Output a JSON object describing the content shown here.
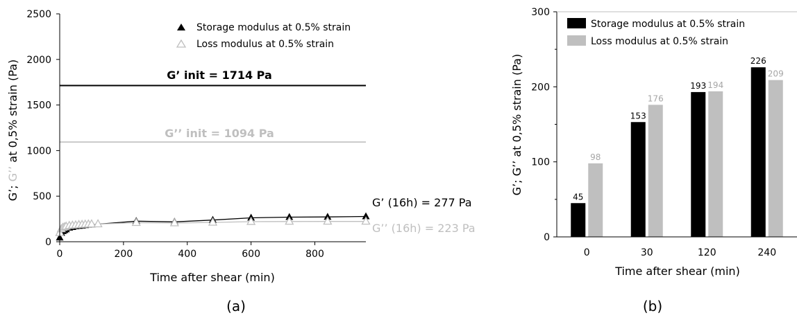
{
  "panels": {
    "a_caption": "(a)",
    "b_caption": "(b)"
  },
  "colors": {
    "storage": "#000000",
    "loss": "#bfbfbf",
    "axis": "#000000",
    "text": "#000000"
  },
  "chart_data": [
    {
      "type": "scatter",
      "xlabel": "Time after shear (min)",
      "ylabel_parts": [
        "G’; ",
        "G’’",
        " at 0,5% strain (Pa)"
      ],
      "xlim": [
        0,
        960
      ],
      "ylim": [
        0,
        2500
      ],
      "xticks": [
        0,
        200,
        400,
        600,
        800
      ],
      "yticks": [
        0,
        500,
        1000,
        1500,
        2000,
        2500
      ],
      "grid": false,
      "legend_position": "top-right",
      "series": [
        {
          "name": "Storage modulus at 0.5% strain",
          "marker": "filled-triangle",
          "color": "#000000",
          "x": [
            0,
            5,
            10,
            15,
            20,
            30,
            40,
            50,
            60,
            70,
            80,
            90,
            100,
            120,
            240,
            360,
            480,
            600,
            720,
            840,
            960
          ],
          "y": [
            45,
            95,
            115,
            125,
            135,
            153,
            160,
            168,
            172,
            176,
            180,
            185,
            188,
            193,
            226,
            218,
            238,
            262,
            270,
            272,
            277
          ]
        },
        {
          "name": "Loss modulus at 0.5% strain",
          "marker": "open-triangle",
          "color": "#bfbfbf",
          "x": [
            0,
            5,
            10,
            15,
            20,
            30,
            40,
            50,
            60,
            70,
            80,
            90,
            100,
            120,
            240,
            360,
            480,
            600,
            720,
            840,
            960
          ],
          "y": [
            98,
            140,
            155,
            162,
            168,
            176,
            180,
            183,
            186,
            188,
            190,
            192,
            193,
            194,
            209,
            205,
            212,
            220,
            222,
            223,
            223
          ]
        }
      ],
      "reference_lines": [
        {
          "label": "G’ init = 1714 Pa",
          "y": 1714,
          "color": "#000000"
        },
        {
          "label": "G’’ init = 1094 Pa",
          "y": 1094,
          "color": "#bfbfbf"
        }
      ],
      "annotations": [
        {
          "text": "G’ (16h) = 277 Pa",
          "color": "#000000"
        },
        {
          "text": "G’’ (16h) = 223 Pa",
          "color": "#bfbfbf"
        }
      ]
    },
    {
      "type": "bar",
      "categories": [
        "0",
        "30",
        "120",
        "240"
      ],
      "xlabel": "Time after shear (min)",
      "ylabel": "G’; G’’ at 0,5% strain (Pa)",
      "ylim": [
        0,
        300
      ],
      "yticks": [
        0,
        100,
        200,
        300
      ],
      "grid": false,
      "legend_position": "top-left",
      "series": [
        {
          "name": "Storage modulus at 0.5% strain",
          "color": "#000000",
          "values": [
            45,
            153,
            193,
            226
          ]
        },
        {
          "name": "Loss modulus at 0.5% strain",
          "color": "#bfbfbf",
          "values": [
            98,
            176,
            194,
            209
          ]
        }
      ]
    }
  ]
}
